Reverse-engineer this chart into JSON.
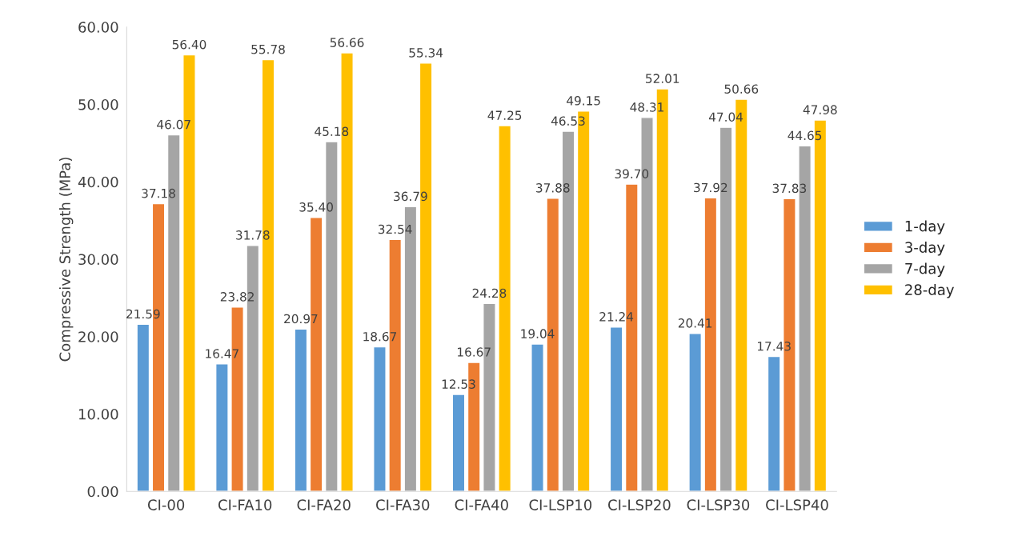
{
  "chart_data": {
    "type": "bar",
    "ylabel": "Compressive Strength (MPa)",
    "categories": [
      "CI-00",
      "CI-FA10",
      "CI-FA20",
      "CI-FA30",
      "CI-FA40",
      "CI-LSP10",
      "CI-LSP20",
      "CI-LSP30",
      "CI-LSP40"
    ],
    "series": [
      {
        "name": "1-day",
        "color": "#5b9bd5",
        "values": [
          21.59,
          16.47,
          20.97,
          18.67,
          12.53,
          19.04,
          21.24,
          20.41,
          17.43
        ],
        "value_labels": [
          "21.59",
          "16.47",
          "20.97",
          "18.67",
          "12.53",
          "19.04",
          "21.24",
          "20.41",
          "17.43"
        ]
      },
      {
        "name": "3-day",
        "color": "#ed7d31",
        "values": [
          37.18,
          23.82,
          35.4,
          32.54,
          16.67,
          37.88,
          39.7,
          37.92,
          37.83
        ],
        "value_labels": [
          "37.18",
          "23.82",
          "35.40",
          "32.54",
          "16.67",
          "37.88",
          "39.70",
          "37.92",
          "37.83"
        ]
      },
      {
        "name": "7-day",
        "color": "#a5a5a5",
        "values": [
          46.07,
          31.78,
          45.18,
          36.79,
          24.28,
          46.53,
          48.31,
          47.04,
          44.65
        ],
        "value_labels": [
          "46.07",
          "31.78",
          "45.18",
          "36.79",
          "24.28",
          "46.53",
          "48.31",
          "47.04",
          "44.65"
        ]
      },
      {
        "name": "28-day",
        "color": "#ffc000",
        "values": [
          56.4,
          55.78,
          56.66,
          55.34,
          47.25,
          49.15,
          52.01,
          50.66,
          47.98
        ],
        "value_labels": [
          "56.40",
          "55.78",
          "56.66",
          "55.34",
          "47.25",
          "49.15",
          "52.01",
          "50.66",
          "47.98"
        ]
      }
    ],
    "ylim": [
      0,
      60
    ],
    "yticks": [
      {
        "value": 0,
        "label": "0.00"
      },
      {
        "value": 10,
        "label": "10.00"
      },
      {
        "value": 20,
        "label": "20.00"
      },
      {
        "value": 30,
        "label": "30.00"
      },
      {
        "value": 40,
        "label": "40.00"
      },
      {
        "value": 50,
        "label": "50.00"
      },
      {
        "value": 60,
        "label": "60.00"
      }
    ],
    "grid": false,
    "legend": "right"
  }
}
